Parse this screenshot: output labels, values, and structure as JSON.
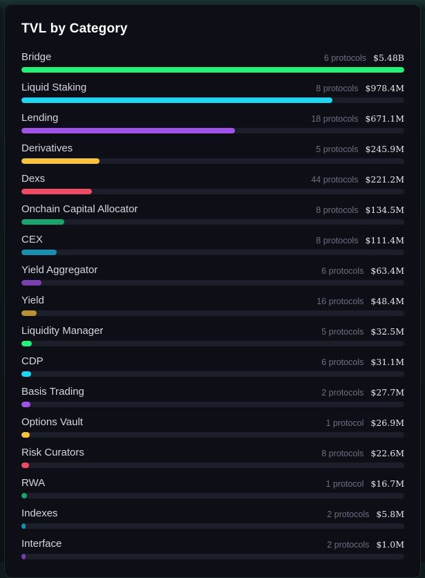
{
  "panel": {
    "title": "TVL by Category",
    "categories": [
      {
        "name": "Bridge",
        "protocols": "6 protocols",
        "tvl": "$5.48B",
        "share": 1.0,
        "color": "#22f077"
      },
      {
        "name": "Liquid Staking",
        "protocols": "8 protocols",
        "tvl": "$978.4M",
        "share": 0.812,
        "color": "#1cd7ef"
      },
      {
        "name": "Lending",
        "protocols": "18 protocols",
        "tvl": "$671.1M",
        "share": 0.557,
        "color": "#a152e9"
      },
      {
        "name": "Derivatives",
        "protocols": "5 protocols",
        "tvl": "$245.9M",
        "share": 0.204,
        "color": "#f7c23b"
      },
      {
        "name": "Dexs",
        "protocols": "44 protocols",
        "tvl": "$221.2M",
        "share": 0.184,
        "color": "#ee4a63"
      },
      {
        "name": "Onchain Capital Allocator",
        "protocols": "8 protocols",
        "tvl": "$134.5M",
        "share": 0.112,
        "color": "#1ba36c"
      },
      {
        "name": "CEX",
        "protocols": "8 protocols",
        "tvl": "$111.4M",
        "share": 0.092,
        "color": "#1a8fb0"
      },
      {
        "name": "Yield Aggregator",
        "protocols": "6 protocols",
        "tvl": "$63.4M",
        "share": 0.052,
        "color": "#7c3fb0"
      },
      {
        "name": "Yield",
        "protocols": "16 protocols",
        "tvl": "$48.4M",
        "share": 0.04,
        "color": "#b8922e"
      },
      {
        "name": "Liquidity Manager",
        "protocols": "5 protocols",
        "tvl": "$32.5M",
        "share": 0.027,
        "color": "#22f077"
      },
      {
        "name": "CDP",
        "protocols": "6 protocols",
        "tvl": "$31.1M",
        "share": 0.026,
        "color": "#1cd7ef"
      },
      {
        "name": "Basis Trading",
        "protocols": "2 protocols",
        "tvl": "$27.7M",
        "share": 0.023,
        "color": "#a152e9"
      },
      {
        "name": "Options Vault",
        "protocols": "1 protocol",
        "tvl": "$26.9M",
        "share": 0.022,
        "color": "#f7c23b"
      },
      {
        "name": "Risk Curators",
        "protocols": "8 protocols",
        "tvl": "$22.6M",
        "share": 0.019,
        "color": "#ee4a63"
      },
      {
        "name": "RWA",
        "protocols": "1 protocol",
        "tvl": "$16.7M",
        "share": 0.014,
        "color": "#1ba36c"
      },
      {
        "name": "Indexes",
        "protocols": "2 protocols",
        "tvl": "$5.8M",
        "share": 0.011,
        "color": "#1a8fb0"
      },
      {
        "name": "Interface",
        "protocols": "2 protocols",
        "tvl": "$1.0M",
        "share": 0.01,
        "color": "#7c3fb0"
      }
    ]
  }
}
